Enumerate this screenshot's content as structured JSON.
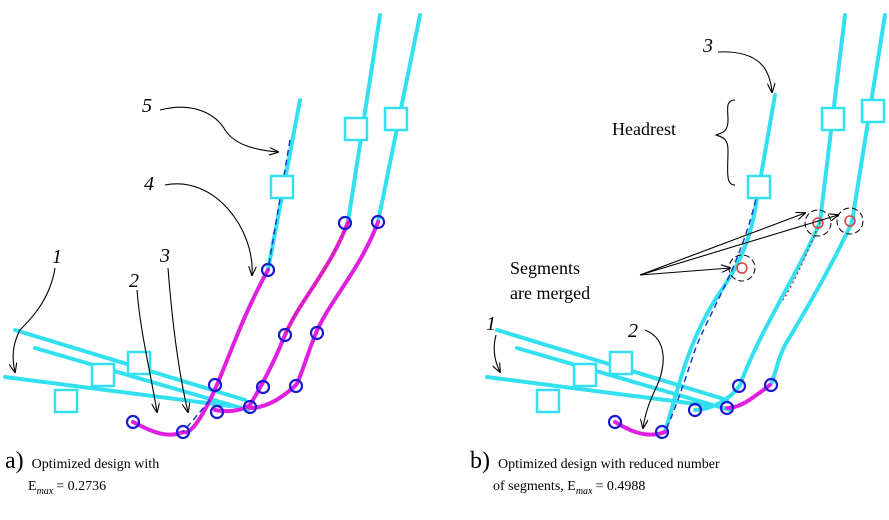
{
  "panels": [
    {
      "caption": {
        "letter": "a)",
        "line1": "Optimized design with",
        "line2_prefix": "E",
        "line2_sub": "max",
        "line2_suffix": "= 0.2736"
      },
      "labels": [
        "1",
        "2",
        "3",
        "4",
        "5"
      ]
    },
    {
      "caption": {
        "letter": "b)",
        "line1": "Optimized design with reduced number",
        "line2_prefix": "of segments, E",
        "line2_sub": "max",
        "line2_suffix": "= 0.4988"
      },
      "labels": [
        "1",
        "2",
        "3"
      ],
      "headrest": "Headrest",
      "note": [
        "Segments",
        "are merged"
      ]
    }
  ]
}
